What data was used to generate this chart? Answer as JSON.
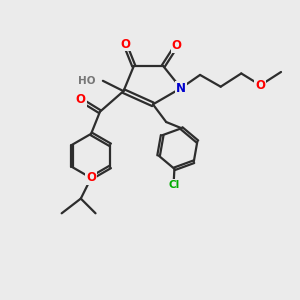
{
  "bg_color": "#ebebeb",
  "bond_color": "#2d2d2d",
  "atom_colors": {
    "O": "#ff0000",
    "N": "#0000cd",
    "Cl": "#00aa00",
    "H": "#777777",
    "C": "#2d2d2d"
  },
  "line_width": 1.6,
  "figsize": [
    3.0,
    3.0
  ],
  "dpi": 100
}
